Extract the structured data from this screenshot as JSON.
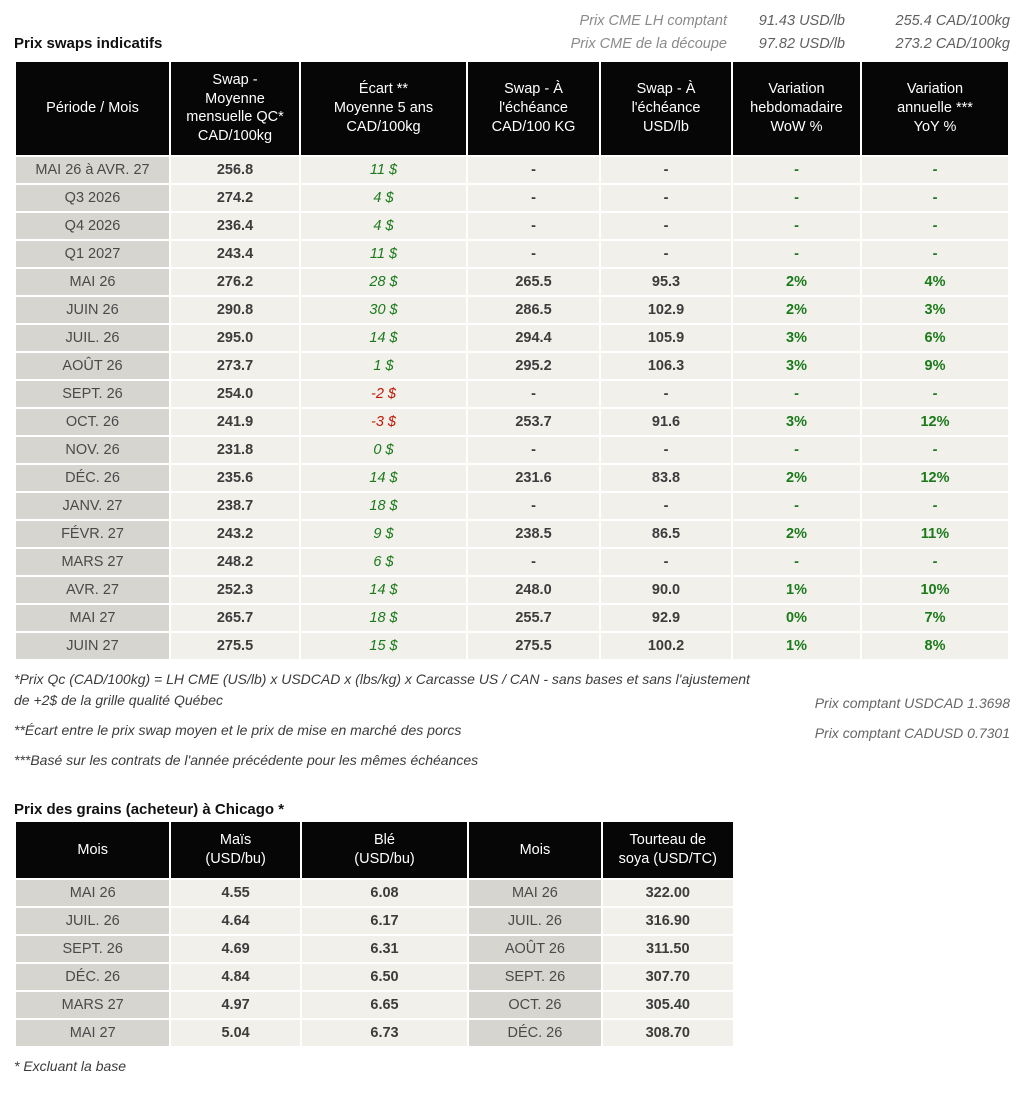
{
  "colors": {
    "positive": "#1b7a1b",
    "negative": "#c21807",
    "header_bg": "#060606",
    "row_bg": "#f1f0ea",
    "period_bg": "#d6d5d0"
  },
  "header": {
    "lines": [
      {
        "label": "Prix CME LH comptant",
        "usd": "91.43 USD/lb",
        "cad": "255.4 CAD/100kg"
      },
      {
        "label": "Prix CME de la découpe",
        "usd": "97.82 USD/lb",
        "cad": "273.2 CAD/100kg"
      }
    ]
  },
  "swaps": {
    "title": "Prix swaps indicatifs",
    "columns": [
      "Période / Mois",
      "Swap -\nMoyenne\nmensuelle QC*\nCAD/100kg",
      "Écart **\nMoyenne 5 ans\nCAD/100kg",
      "Swap - À\nl'échéance\nCAD/100 KG",
      "Swap - À\nl'échéance\nUSD/lb",
      "Variation\nhebdomadaire\nWoW %",
      "Variation\nannuelle ***\nYoY %"
    ],
    "rows": [
      [
        "MAI 26 à  AVR. 27",
        "256.8",
        "11 $",
        "-",
        "-",
        "-",
        "-"
      ],
      [
        "Q3 2026",
        "274.2",
        "4 $",
        "-",
        "-",
        "-",
        "-"
      ],
      [
        "Q4 2026",
        "236.4",
        "4 $",
        "-",
        "-",
        "-",
        "-"
      ],
      [
        "Q1 2027",
        "243.4",
        "11 $",
        "-",
        "-",
        "-",
        "-"
      ],
      [
        "MAI 26",
        "276.2",
        "28 $",
        "265.5",
        "95.3",
        "2%",
        "4%"
      ],
      [
        "JUIN 26",
        "290.8",
        "30 $",
        "286.5",
        "102.9",
        "2%",
        "3%"
      ],
      [
        "JUIL. 26",
        "295.0",
        "14 $",
        "294.4",
        "105.9",
        "3%",
        "6%"
      ],
      [
        "AOÛT 26",
        "273.7",
        "1 $",
        "295.2",
        "106.3",
        "3%",
        "9%"
      ],
      [
        "SEPT. 26",
        "254.0",
        "-2 $",
        "-",
        "-",
        "-",
        "-"
      ],
      [
        "OCT. 26",
        "241.9",
        "-3 $",
        "253.7",
        "91.6",
        "3%",
        "12%"
      ],
      [
        "NOV. 26",
        "231.8",
        "0 $",
        "-",
        "-",
        "-",
        "-"
      ],
      [
        "DÉC. 26",
        "235.6",
        "14 $",
        "231.6",
        "83.8",
        "2%",
        "12%"
      ],
      [
        "JANV. 27",
        "238.7",
        "18 $",
        "-",
        "-",
        "-",
        "-"
      ],
      [
        "FÉVR. 27",
        "243.2",
        "9 $",
        "238.5",
        "86.5",
        "2%",
        "11%"
      ],
      [
        "MARS 27",
        "248.2",
        "6 $",
        "-",
        "-",
        "-",
        "-"
      ],
      [
        "AVR. 27",
        "252.3",
        "14 $",
        "248.0",
        "90.0",
        "1%",
        "10%"
      ],
      [
        "MAI 27",
        "265.7",
        "18 $",
        "255.7",
        "92.9",
        "0%",
        "7%"
      ],
      [
        "JUIN 27",
        "275.5",
        "15 $",
        "275.5",
        "100.2",
        "1%",
        "8%"
      ]
    ]
  },
  "footnotes": {
    "left": [
      "*Prix Qc (CAD/100kg) = LH CME (US/lb) x USDCAD x (lbs/kg) x Carcasse US / CAN - sans bases et sans l'ajustement de +2$ de la grille qualité Québec",
      "**Écart entre le prix swap moyen et le prix de mise en marché des porcs",
      "***Basé sur les contrats de l'année précédente pour les mêmes échéances"
    ],
    "right": [
      "Prix comptant USDCAD 1.3698",
      "Prix comptant CADUSD 0.7301"
    ]
  },
  "grains": {
    "title": "Prix des grains (acheteur) à Chicago *",
    "columns": [
      "Mois",
      "Maïs\n(USD/bu)",
      "Blé\n(USD/bu)",
      "Mois",
      "Tourteau de\nsoya (USD/TC)"
    ],
    "rows": [
      [
        "MAI 26",
        "4.55",
        "6.08",
        "MAI 26",
        "322.00"
      ],
      [
        "JUIL. 26",
        "4.64",
        "6.17",
        "JUIL. 26",
        "316.90"
      ],
      [
        "SEPT. 26",
        "4.69",
        "6.31",
        "AOÛT 26",
        "311.50"
      ],
      [
        "DÉC. 26",
        "4.84",
        "6.50",
        "SEPT. 26",
        "307.70"
      ],
      [
        "MARS 27",
        "4.97",
        "6.65",
        "OCT. 26",
        "305.40"
      ],
      [
        "MAI 27",
        "5.04",
        "6.73",
        "DÉC. 26",
        "308.70"
      ]
    ],
    "footnote": "* Excluant la base"
  }
}
